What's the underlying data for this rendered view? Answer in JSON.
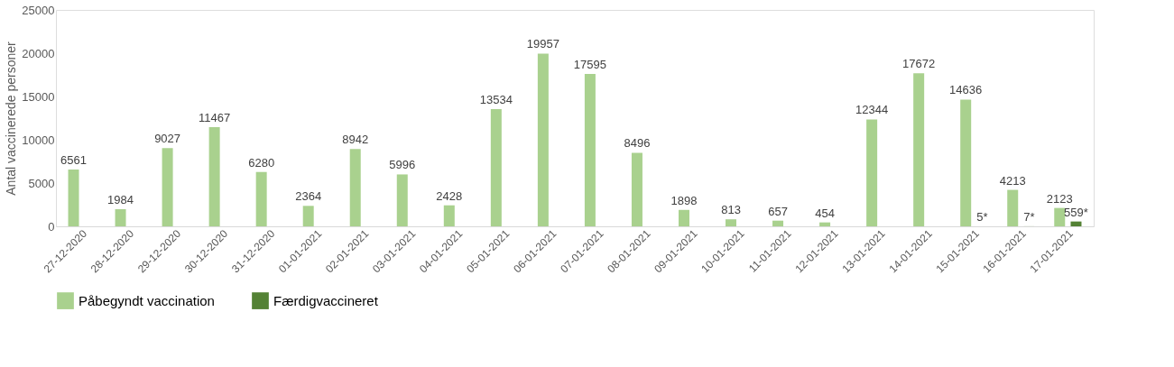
{
  "chart_data": {
    "type": "bar",
    "ylabel": "Antal vaccinerede personer",
    "categories": [
      "27-12-2020",
      "28-12-2020",
      "29-12-2020",
      "30-12-2020",
      "31-12-2020",
      "01-01-2021",
      "02-01-2021",
      "03-01-2021",
      "04-01-2021",
      "05-01-2021",
      "06-01-2021",
      "07-01-2021",
      "08-01-2021",
      "09-01-2021",
      "10-01-2021",
      "11-01-2021",
      "12-01-2021",
      "13-01-2021",
      "14-01-2021",
      "15-01-2021",
      "16-01-2021",
      "17-01-2021"
    ],
    "series": [
      {
        "name": "Påbegyndt vaccination",
        "color": "#a9d18e",
        "values": [
          6561,
          1984,
          9027,
          11467,
          6280,
          2364,
          8942,
          5996,
          2428,
          13534,
          19957,
          17595,
          8496,
          1898,
          813,
          657,
          454,
          12344,
          17672,
          14636,
          4213,
          2123
        ],
        "value_labels": [
          "6561",
          "1984",
          "9027",
          "11467",
          "6280",
          "2364",
          "8942",
          "5996",
          "2428",
          "13534",
          "19957",
          "17595",
          "8496",
          "1898",
          "813",
          "657",
          "454",
          "12344",
          "17672",
          "14636",
          "4213",
          "2123"
        ]
      },
      {
        "name": "Færdigvaccineret",
        "color": "#548235",
        "values": [
          null,
          null,
          null,
          null,
          null,
          null,
          null,
          null,
          null,
          null,
          null,
          null,
          null,
          null,
          null,
          null,
          null,
          null,
          null,
          5,
          7,
          559
        ],
        "value_labels": [
          null,
          null,
          null,
          null,
          null,
          null,
          null,
          null,
          null,
          null,
          null,
          null,
          null,
          null,
          null,
          null,
          null,
          null,
          null,
          "5*",
          "7*",
          "559*"
        ]
      }
    ],
    "ylim": [
      0,
      25000
    ],
    "yticks": [
      0,
      5000,
      10000,
      15000,
      20000,
      25000
    ],
    "grid": false,
    "legend": "bottom"
  }
}
